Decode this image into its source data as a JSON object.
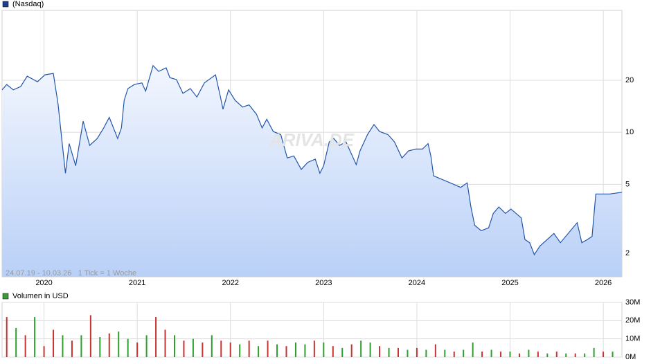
{
  "chart_data": [
    {
      "type": "line",
      "legend": "(Nasdaq)",
      "legend_color": "#1f3f8f",
      "color": "#2255aa",
      "note": "24.07.19 - 10.03.26   1 Tick = 1 Woche",
      "watermark": "ARIVA.DE",
      "log_y": true,
      "grid": true,
      "xlim": [
        2019.55,
        2026.2
      ],
      "xticks": [
        2020,
        2021,
        2022,
        2023,
        2024,
        2025,
        2026
      ],
      "ylim": [
        1.46,
        50.7
      ],
      "yticks": [
        2,
        5,
        10,
        20
      ],
      "x": [
        2019.55,
        2019.6,
        2019.67,
        2019.75,
        2019.82,
        2019.93,
        2020.01,
        2020.1,
        2020.15,
        2020.19,
        2020.23,
        2020.27,
        2020.34,
        2020.42,
        2020.49,
        2020.57,
        2020.64,
        2020.7,
        2020.79,
        2020.83,
        2020.86,
        2020.9,
        2020.97,
        2021.05,
        2021.09,
        2021.17,
        2021.23,
        2021.31,
        2021.35,
        2021.42,
        2021.49,
        2021.57,
        2021.64,
        2021.72,
        2021.84,
        2021.89,
        2021.92,
        2021.98,
        2022.05,
        2022.13,
        2022.2,
        2022.28,
        2022.34,
        2022.39,
        2022.46,
        2022.54,
        2022.61,
        2022.68,
        2022.76,
        2022.83,
        2022.91,
        2022.96,
        2023.0,
        2023.06,
        2023.11,
        2023.17,
        2023.24,
        2023.35,
        2023.39,
        2023.47,
        2023.54,
        2023.6,
        2023.69,
        2023.76,
        2023.84,
        2023.91,
        2023.99,
        2024.06,
        2024.12,
        2024.15,
        2024.18,
        2024.32,
        2024.47,
        2024.54,
        2024.58,
        2024.62,
        2024.69,
        2024.77,
        2024.82,
        2024.88,
        2024.95,
        2025.01,
        2025.12,
        2025.16,
        2025.21,
        2025.26,
        2025.32,
        2025.47,
        2025.54,
        2025.72,
        2025.77,
        2025.83,
        2025.88,
        2025.92,
        2026.07,
        2026.2
      ],
      "values": [
        17.6,
        18.9,
        17.6,
        18.4,
        21.1,
        19.6,
        21.5,
        21.9,
        14.6,
        9.2,
        5.8,
        8.6,
        6.4,
        11.6,
        8.4,
        9.2,
        10.6,
        12.2,
        9.2,
        10.6,
        15.3,
        17.9,
        18.9,
        19.3,
        17.3,
        24.3,
        22.5,
        23.6,
        20.7,
        20.2,
        16.8,
        17.9,
        16.0,
        19.3,
        21.5,
        16.3,
        13.6,
        17.6,
        15.3,
        14.0,
        14.4,
        12.7,
        10.6,
        11.9,
        10.1,
        9.7,
        7.1,
        7.3,
        6.1,
        6.7,
        7.0,
        5.8,
        6.4,
        8.8,
        9.2,
        8.4,
        8.8,
        6.5,
        7.8,
        9.7,
        11.1,
        10.1,
        9.7,
        8.8,
        7.1,
        7.8,
        8.0,
        8.0,
        8.6,
        7.3,
        5.6,
        5.2,
        4.8,
        5.1,
        3.7,
        2.9,
        2.7,
        2.8,
        3.4,
        3.7,
        3.4,
        3.6,
        3.2,
        2.4,
        2.3,
        1.96,
        2.2,
        2.6,
        2.3,
        3.0,
        2.3,
        2.4,
        2.5,
        4.4,
        4.4,
        4.5
      ]
    },
    {
      "type": "bar",
      "legend": "Volumen in USD",
      "legend_color": "#3a9a3a",
      "xlim": [
        2019.55,
        2026.2
      ],
      "ylim": [
        0,
        30000000
      ],
      "yticks": [
        {
          "value": 0,
          "label": "0M"
        },
        {
          "value": 10000000,
          "label": "10M"
        },
        {
          "value": 20000000,
          "label": "20M"
        },
        {
          "value": 30000000,
          "label": "30M"
        }
      ],
      "x": [
        2019.6,
        2019.7,
        2019.8,
        2019.9,
        2020.0,
        2020.1,
        2020.2,
        2020.3,
        2020.4,
        2020.5,
        2020.6,
        2020.7,
        2020.8,
        2020.9,
        2021.0,
        2021.1,
        2021.2,
        2021.3,
        2021.4,
        2021.5,
        2021.6,
        2021.7,
        2021.8,
        2021.9,
        2022.0,
        2022.1,
        2022.2,
        2022.3,
        2022.4,
        2022.5,
        2022.6,
        2022.7,
        2022.8,
        2022.9,
        2023.0,
        2023.1,
        2023.2,
        2023.3,
        2023.4,
        2023.5,
        2023.6,
        2023.7,
        2023.8,
        2023.9,
        2024.0,
        2024.1,
        2024.2,
        2024.3,
        2024.4,
        2024.5,
        2024.6,
        2024.7,
        2024.8,
        2024.9,
        2025.0,
        2025.1,
        2025.2,
        2025.3,
        2025.4,
        2025.5,
        2025.6,
        2025.7,
        2025.8,
        2025.9,
        2026.0,
        2026.1
      ],
      "values": [
        22000000,
        16000000,
        12000000,
        22000000,
        6000000,
        15000000,
        12000000,
        9000000,
        12000000,
        23000000,
        11000000,
        13000000,
        14000000,
        10000000,
        8000000,
        12000000,
        22000000,
        15000000,
        12000000,
        9000000,
        10000000,
        8000000,
        12000000,
        9000000,
        8000000,
        7000000,
        9000000,
        6000000,
        9000000,
        7000000,
        6000000,
        8000000,
        7000000,
        9000000,
        8000000,
        6000000,
        5000000,
        7000000,
        9000000,
        8000000,
        6000000,
        5000000,
        5000000,
        4000000,
        5000000,
        4000000,
        7000000,
        4000000,
        3000000,
        4000000,
        8000000,
        3000000,
        4000000,
        3000000,
        3000000,
        2000000,
        4000000,
        3000000,
        2000000,
        3000000,
        2000000,
        2000000,
        2000000,
        5000000,
        3000000,
        3000000
      ],
      "colors": [
        "#c83232",
        "#2ca02c",
        "#c83232",
        "#2ca02c",
        "#c83232",
        "#c83232",
        "#2ca02c",
        "#c83232",
        "#2ca02c",
        "#c83232",
        "#2ca02c",
        "#c83232",
        "#2ca02c",
        "#2ca02c",
        "#c83232",
        "#2ca02c",
        "#c83232",
        "#c83232",
        "#2ca02c",
        "#c83232",
        "#2ca02c",
        "#c83232",
        "#2ca02c",
        "#c83232",
        "#c83232",
        "#2ca02c",
        "#c83232",
        "#2ca02c",
        "#c83232",
        "#2ca02c",
        "#c83232",
        "#2ca02c",
        "#2ca02c",
        "#c83232",
        "#2ca02c",
        "#c83232",
        "#2ca02c",
        "#c83232",
        "#2ca02c",
        "#2ca02c",
        "#c83232",
        "#2ca02c",
        "#c83232",
        "#2ca02c",
        "#c83232",
        "#2ca02c",
        "#c83232",
        "#2ca02c",
        "#c83232",
        "#2ca02c",
        "#2ca02c",
        "#c83232",
        "#2ca02c",
        "#c83232",
        "#2ca02c",
        "#c83232",
        "#2ca02c",
        "#c83232",
        "#2ca02c",
        "#c83232",
        "#2ca02c",
        "#c83232",
        "#2ca02c",
        "#2ca02c",
        "#c83232",
        "#2ca02c"
      ]
    }
  ]
}
